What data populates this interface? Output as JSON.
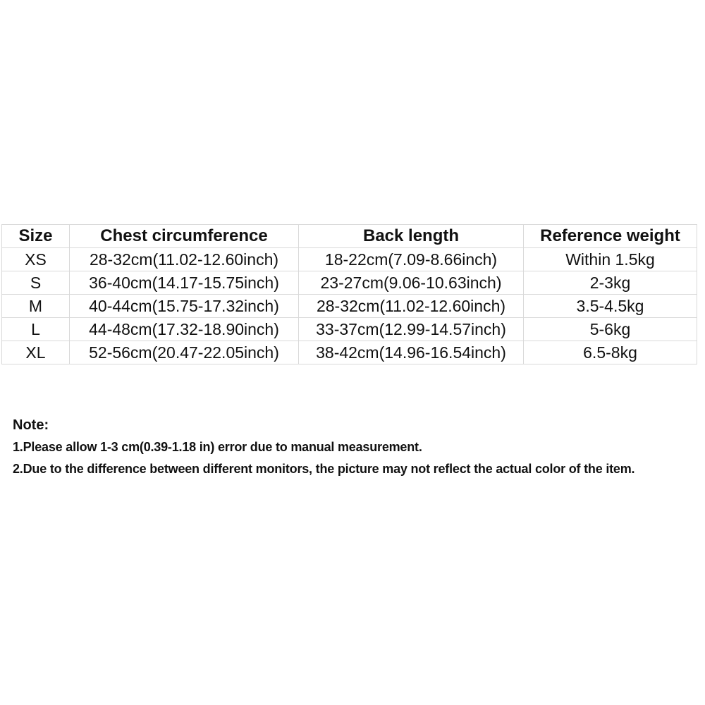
{
  "chart_data": {
    "type": "table",
    "columns": [
      "Size",
      "Chest circumference",
      "Back length",
      "Reference weight"
    ],
    "rows": [
      [
        "XS",
        "28-32cm(11.02-12.60inch)",
        "18-22cm(7.09-8.66inch)",
        "Within 1.5kg"
      ],
      [
        "S",
        "36-40cm(14.17-15.75inch)",
        "23-27cm(9.06-10.63inch)",
        "2-3kg"
      ],
      [
        "M",
        "40-44cm(15.75-17.32inch)",
        "28-32cm(11.02-12.60inch)",
        "3.5-4.5kg"
      ],
      [
        "L",
        "44-48cm(17.32-18.90inch)",
        "33-37cm(12.99-14.57inch)",
        "5-6kg"
      ],
      [
        "XL",
        "52-56cm(20.47-22.05inch)",
        "38-42cm(14.96-16.54inch)",
        "6.5-8kg"
      ]
    ]
  },
  "notes": {
    "title": "Note:",
    "items": [
      "1.Please allow 1-3 cm(0.39-1.18 in) error due to manual measurement.",
      "2.Due to the difference between different monitors, the picture may not reflect the actual color of the item."
    ]
  },
  "colors": {
    "background": "#ffffff",
    "table_border": "#d9d9d9",
    "text": "#111111"
  }
}
